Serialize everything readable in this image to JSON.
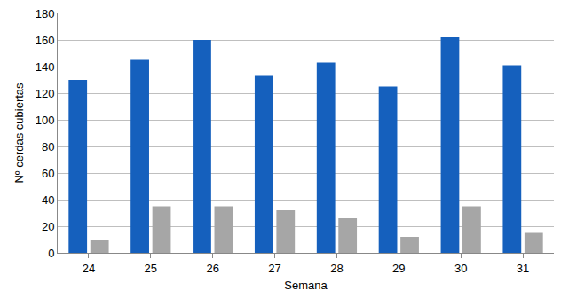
{
  "chart_data": {
    "type": "bar",
    "x_label": "Semana",
    "y_label": "Nº cerdas cubiertas",
    "categories": [
      "24",
      "25",
      "26",
      "27",
      "28",
      "29",
      "30",
      "31"
    ],
    "series": [
      {
        "color": "#1560bd",
        "values": [
          130,
          145,
          160,
          133,
          143,
          125,
          162,
          141
        ]
      },
      {
        "color": "#a6a6a6",
        "values": [
          10,
          35,
          35,
          32,
          26,
          12,
          35,
          15
        ]
      }
    ],
    "ylim": [
      0,
      180
    ],
    "yticks": [
      0,
      20,
      40,
      60,
      80,
      100,
      120,
      140,
      160,
      180
    ],
    "grid": true
  }
}
